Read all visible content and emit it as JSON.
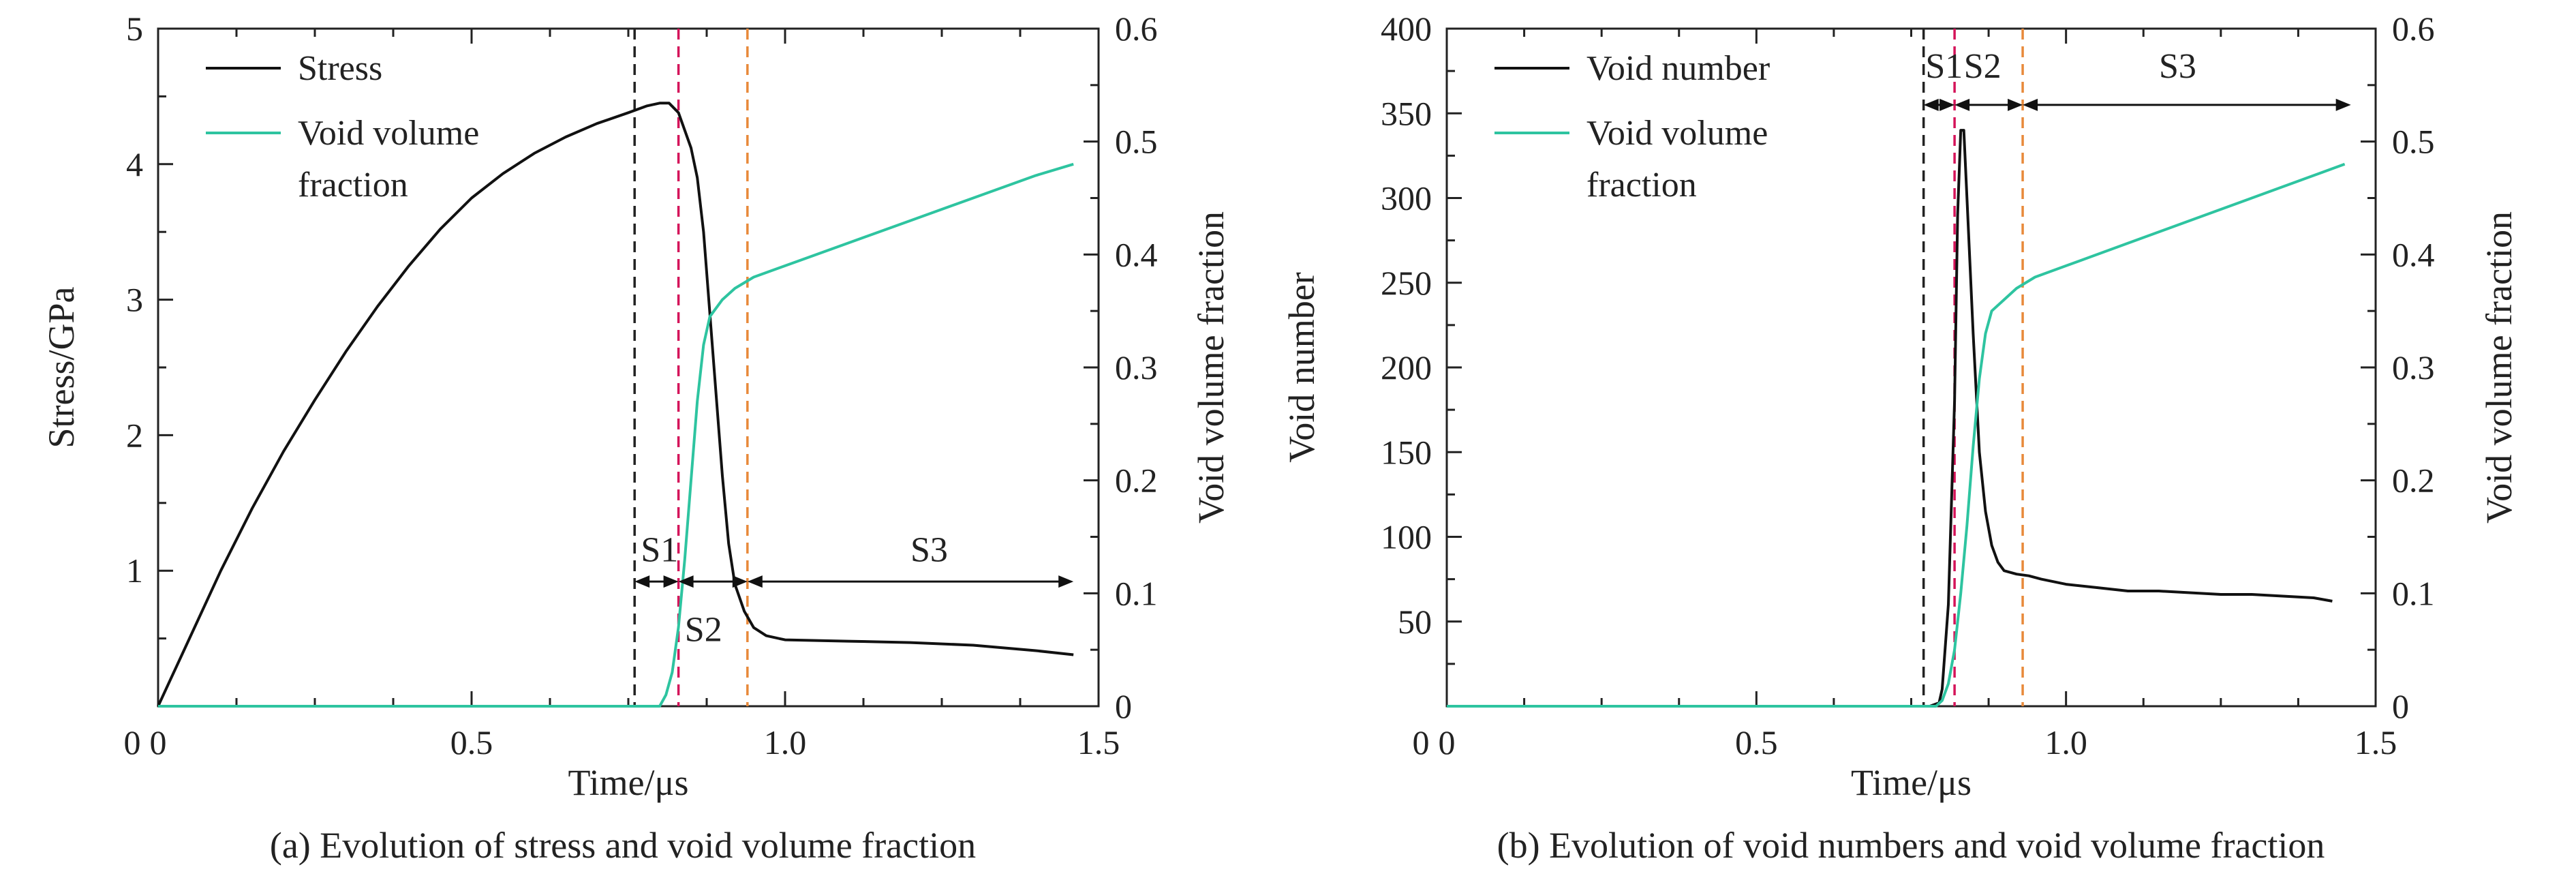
{
  "colors": {
    "primary_series": "#111111",
    "vvf_series": "#2ec4a0",
    "marker_black": "#222222",
    "marker_magenta": "#d4145a",
    "marker_orange": "#e8893a",
    "axis": "#222222"
  },
  "chart_data": [
    {
      "type": "line",
      "caption": "(a) Evolution of stress and void volume fraction",
      "xlabel": "Time/μs",
      "ylabel": "Stress/GPa",
      "y2label": "Void volume fraction",
      "xlim": [
        0,
        1.5
      ],
      "ylim": [
        0,
        5
      ],
      "y2lim": [
        0,
        0.6
      ],
      "xticks": [
        "0",
        "0.5",
        "1.0",
        "1.5"
      ],
      "yticks": [
        "1",
        "2",
        "3",
        "4",
        "5"
      ],
      "y2ticks": [
        "0",
        "0.1",
        "0.2",
        "0.3",
        "0.4",
        "0.5",
        "0.6"
      ],
      "legend_position": "top-left",
      "grid": false,
      "series": [
        {
          "name": "Stress",
          "axis": "left",
          "color_key": "primary_series",
          "points": [
            [
              0.0,
              0.0
            ],
            [
              0.05,
              0.5
            ],
            [
              0.1,
              1.0
            ],
            [
              0.15,
              1.46
            ],
            [
              0.2,
              1.88
            ],
            [
              0.25,
              2.26
            ],
            [
              0.3,
              2.62
            ],
            [
              0.35,
              2.95
            ],
            [
              0.4,
              3.25
            ],
            [
              0.45,
              3.52
            ],
            [
              0.5,
              3.75
            ],
            [
              0.55,
              3.93
            ],
            [
              0.6,
              4.08
            ],
            [
              0.65,
              4.2
            ],
            [
              0.7,
              4.3
            ],
            [
              0.75,
              4.38
            ],
            [
              0.78,
              4.43
            ],
            [
              0.8,
              4.45
            ],
            [
              0.815,
              4.45
            ],
            [
              0.83,
              4.38
            ],
            [
              0.85,
              4.12
            ],
            [
              0.86,
              3.9
            ],
            [
              0.87,
              3.5
            ],
            [
              0.88,
              2.9
            ],
            [
              0.89,
              2.3
            ],
            [
              0.9,
              1.7
            ],
            [
              0.91,
              1.2
            ],
            [
              0.92,
              0.9
            ],
            [
              0.935,
              0.7
            ],
            [
              0.95,
              0.58
            ],
            [
              0.97,
              0.52
            ],
            [
              1.0,
              0.49
            ],
            [
              1.1,
              0.48
            ],
            [
              1.2,
              0.47
            ],
            [
              1.3,
              0.45
            ],
            [
              1.4,
              0.41
            ],
            [
              1.46,
              0.38
            ]
          ]
        },
        {
          "name": "Void volume fraction",
          "axis": "right",
          "color_key": "vvf_series",
          "points": [
            [
              0.0,
              0.0
            ],
            [
              0.77,
              0.0
            ],
            [
              0.8,
              0.0
            ],
            [
              0.81,
              0.01
            ],
            [
              0.82,
              0.03
            ],
            [
              0.83,
              0.07
            ],
            [
              0.84,
              0.13
            ],
            [
              0.85,
              0.2
            ],
            [
              0.86,
              0.27
            ],
            [
              0.87,
              0.32
            ],
            [
              0.88,
              0.345
            ],
            [
              0.9,
              0.36
            ],
            [
              0.92,
              0.37
            ],
            [
              0.95,
              0.38
            ],
            [
              1.0,
              0.39
            ],
            [
              1.1,
              0.41
            ],
            [
              1.2,
              0.43
            ],
            [
              1.3,
              0.45
            ],
            [
              1.4,
              0.47
            ],
            [
              1.46,
              0.48
            ]
          ]
        }
      ],
      "markers": [
        {
          "x": 0.76,
          "color_key": "marker_black"
        },
        {
          "x": 0.83,
          "color_key": "marker_magenta"
        },
        {
          "x": 0.94,
          "color_key": "marker_orange"
        }
      ],
      "stages": [
        {
          "label": "S1",
          "from": 0.76,
          "to": 0.83,
          "y": 0.92,
          "axis": "left",
          "label_x": 0.77,
          "label_y": 1.07
        },
        {
          "label": "S2",
          "from": 0.83,
          "to": 0.94,
          "y": 0.92,
          "axis": "left",
          "label_x": 0.84,
          "label_y": 0.48
        },
        {
          "label": "S3",
          "from": 0.94,
          "to": 1.46,
          "y": 0.92,
          "axis": "left",
          "label_x": 1.2,
          "label_y": 1.07
        }
      ]
    },
    {
      "type": "line",
      "caption": "(b) Evolution of void numbers and void volume fraction",
      "xlabel": "Time/μs",
      "ylabel": "Void number",
      "y2label": "Void volume fraction",
      "xlim": [
        0,
        1.5
      ],
      "ylim": [
        0,
        400
      ],
      "y2lim": [
        0,
        0.6
      ],
      "xticks": [
        "0",
        "0.5",
        "1.0",
        "1.5"
      ],
      "yticks": [
        "50",
        "100",
        "150",
        "200",
        "250",
        "300",
        "350",
        "400"
      ],
      "y2ticks": [
        "0",
        "0.1",
        "0.2",
        "0.3",
        "0.4",
        "0.5",
        "0.6"
      ],
      "legend_position": "top-left",
      "grid": false,
      "series": [
        {
          "name": "Void number",
          "axis": "left",
          "color_key": "primary_series",
          "points": [
            [
              0.0,
              0.0
            ],
            [
              0.78,
              0.0
            ],
            [
              0.795,
              2
            ],
            [
              0.8,
              10
            ],
            [
              0.81,
              60
            ],
            [
              0.82,
              180
            ],
            [
              0.825,
              290
            ],
            [
              0.83,
              340
            ],
            [
              0.835,
              340
            ],
            [
              0.84,
              300
            ],
            [
              0.85,
              220
            ],
            [
              0.86,
              150
            ],
            [
              0.87,
              115
            ],
            [
              0.88,
              95
            ],
            [
              0.89,
              85
            ],
            [
              0.9,
              80
            ],
            [
              0.92,
              78
            ],
            [
              0.94,
              77
            ],
            [
              0.96,
              75
            ],
            [
              1.0,
              72
            ],
            [
              1.05,
              70
            ],
            [
              1.1,
              68
            ],
            [
              1.15,
              68
            ],
            [
              1.2,
              67
            ],
            [
              1.25,
              66
            ],
            [
              1.3,
              66
            ],
            [
              1.35,
              65
            ],
            [
              1.4,
              64
            ],
            [
              1.43,
              62
            ]
          ]
        },
        {
          "name": "Void volume fraction",
          "axis": "right",
          "color_key": "vvf_series",
          "points": [
            [
              0.0,
              0.0
            ],
            [
              0.79,
              0.0
            ],
            [
              0.8,
              0.005
            ],
            [
              0.81,
              0.02
            ],
            [
              0.82,
              0.05
            ],
            [
              0.83,
              0.1
            ],
            [
              0.84,
              0.16
            ],
            [
              0.85,
              0.23
            ],
            [
              0.86,
              0.29
            ],
            [
              0.87,
              0.33
            ],
            [
              0.88,
              0.35
            ],
            [
              0.9,
              0.36
            ],
            [
              0.92,
              0.37
            ],
            [
              0.95,
              0.38
            ],
            [
              1.0,
              0.39
            ],
            [
              1.1,
              0.41
            ],
            [
              1.2,
              0.43
            ],
            [
              1.3,
              0.45
            ],
            [
              1.4,
              0.47
            ],
            [
              1.45,
              0.48
            ]
          ]
        }
      ],
      "markers": [
        {
          "x": 0.77,
          "color_key": "marker_black"
        },
        {
          "x": 0.82,
          "color_key": "marker_magenta"
        },
        {
          "x": 0.93,
          "color_key": "marker_orange"
        }
      ],
      "stages": [
        {
          "label": "S1",
          "from": 0.77,
          "to": 0.82,
          "y": 355,
          "axis": "left",
          "label_x": 0.773,
          "label_y": 371
        },
        {
          "label": "S2",
          "from": 0.82,
          "to": 0.93,
          "y": 355,
          "axis": "left",
          "label_x": 0.835,
          "label_y": 371
        },
        {
          "label": "S3",
          "from": 0.93,
          "to": 1.46,
          "y": 355,
          "axis": "left",
          "label_x": 1.15,
          "label_y": 371
        }
      ]
    }
  ]
}
